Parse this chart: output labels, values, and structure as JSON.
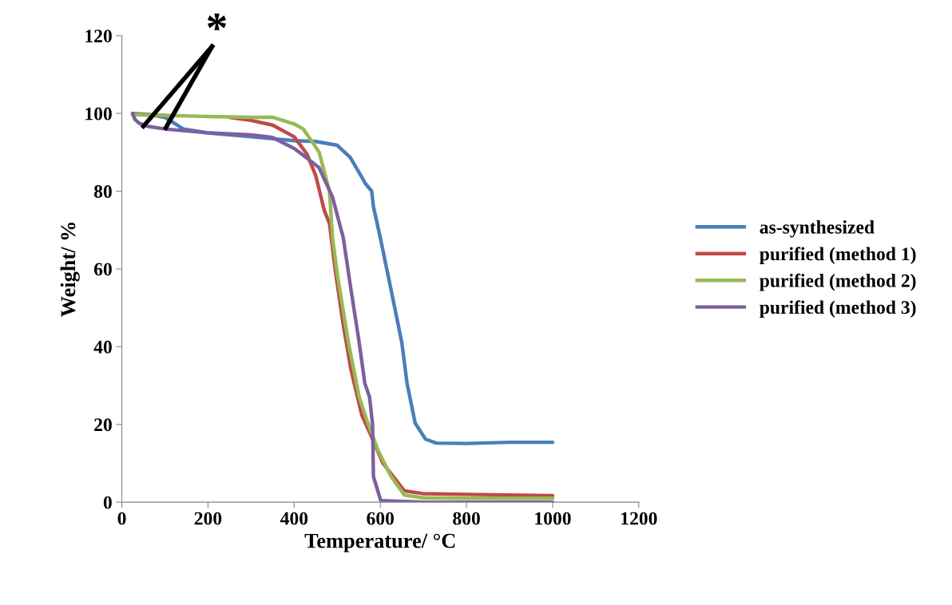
{
  "chart_data": {
    "type": "line",
    "xlabel": "Temperature/ °C",
    "ylabel": "Weight/ %",
    "xlim": [
      0,
      1200
    ],
    "xticks": [
      0,
      200,
      400,
      600,
      800,
      1000,
      1200
    ],
    "ylim": [
      0,
      120
    ],
    "yticks": [
      0,
      20,
      40,
      60,
      80,
      100,
      120
    ],
    "grid": false,
    "legend": "right",
    "marker": "none",
    "line_style": "solid",
    "series": [
      {
        "name": "as-synthesized",
        "color": "#4a7ebb",
        "x": [
          25,
          60,
          100,
          143,
          200,
          300,
          400,
          450,
          500,
          530,
          555,
          565,
          580,
          584,
          600,
          625,
          650,
          662,
          681,
          705,
          730,
          800,
          900,
          1000
        ],
        "values": [
          100,
          99.8,
          99,
          96,
          95,
          94,
          93,
          92.8,
          91.8,
          88.7,
          84,
          82,
          80,
          76,
          68,
          54.6,
          41,
          30.6,
          20.3,
          16.2,
          15.2,
          15.1,
          15.4,
          15.4
        ]
      },
      {
        "name": "purified (method 1)",
        "color": "#be4b48",
        "x": [
          25,
          100,
          200,
          250,
          300,
          350,
          400,
          430,
          450,
          470,
          482,
          495,
          514,
          532,
          557,
          575,
          606,
          656,
          699,
          800,
          1000
        ],
        "values": [
          99.7,
          99.5,
          null,
          99,
          98.2,
          97,
          94,
          89.5,
          84,
          75,
          71.7,
          60,
          45.6,
          34,
          22.4,
          18,
          10,
          2.9,
          2.2,
          2,
          1.7
        ]
      },
      {
        "name": "purified (method 2)",
        "color": "#98b954",
        "x": [
          25,
          100,
          200,
          300,
          350,
          400,
          421,
          440,
          458,
          482,
          489,
          501,
          526,
          551,
          569,
          594,
          625,
          656,
          700,
          800,
          1000
        ],
        "values": [
          99.7,
          99.5,
          99.2,
          99,
          99,
          97.3,
          96,
          93,
          90,
          80,
          68,
          58,
          41,
          27,
          21,
          13.5,
          6.6,
          1.8,
          1.1,
          1,
          1
        ]
      },
      {
        "name": "purified (method 3)",
        "color": "#7d60a0",
        "x": [
          25,
          30,
          40,
          60,
          100,
          200,
          300,
          350,
          400,
          430,
          458,
          489,
          514,
          532,
          551,
          564,
          575,
          582,
          584,
          601,
          700,
          1000
        ],
        "values": [
          100,
          98.5,
          97.5,
          96.7,
          96,
          95,
          94.5,
          93.8,
          91,
          88.5,
          86,
          78.5,
          68,
          54.6,
          41,
          30.6,
          27,
          20,
          6.6,
          0.4,
          0,
          0
        ]
      }
    ],
    "annotations": [
      {
        "text": "*",
        "x": 50,
        "y": 96.7
      }
    ]
  }
}
